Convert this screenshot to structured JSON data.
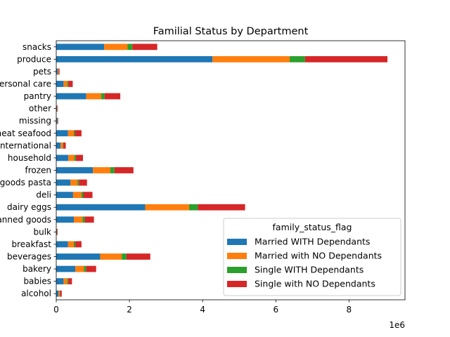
{
  "chart_data": {
    "type": "bar",
    "orientation": "horizontal",
    "stacked": true,
    "title": "Familial Status by Department",
    "xlabel": "",
    "ylabel": "",
    "x_offset_label": "1e6",
    "xlim": [
      0,
      9530000
    ],
    "x_ticks": [
      0,
      2000000,
      4000000,
      6000000,
      8000000
    ],
    "x_tick_labels": [
      "0",
      "2",
      "4",
      "6",
      "8"
    ],
    "legend": {
      "title": "family_status_flag",
      "placement": "lower-right"
    },
    "categories": [
      "alcohol",
      "babies",
      "bakery",
      "beverages",
      "breakfast",
      "bulk",
      "canned goods",
      "dairy eggs",
      "deli",
      "dry goods pasta",
      "frozen",
      "household",
      "international",
      "meat seafood",
      "missing",
      "other",
      "pantry",
      "personal care",
      "pets",
      "produce",
      "snacks"
    ],
    "series": [
      {
        "name": "Married WITH Dependants",
        "color": "#1f77b4",
        "values": [
          60000,
          200000,
          520000,
          1200000,
          320000,
          20000,
          480000,
          2430000,
          460000,
          390000,
          1000000,
          330000,
          120000,
          320000,
          30000,
          20000,
          820000,
          200000,
          40000,
          4270000,
          1310000
        ]
      },
      {
        "name": "Married with NO Dependants",
        "color": "#ff7f0e",
        "values": [
          30000,
          100000,
          240000,
          590000,
          160000,
          10000,
          240000,
          1200000,
          230000,
          190000,
          480000,
          170000,
          60000,
          160000,
          10000,
          10000,
          410000,
          100000,
          20000,
          2110000,
          640000
        ]
      },
      {
        "name": "Single WITH Dependants",
        "color": "#2ca02c",
        "values": [
          10000,
          30000,
          60000,
          130000,
          40000,
          2000,
          60000,
          240000,
          50000,
          40000,
          110000,
          40000,
          10000,
          30000,
          5000,
          3000,
          90000,
          30000,
          5000,
          420000,
          130000
        ]
      },
      {
        "name": "Single with NO Dependants",
        "color": "#d62728",
        "values": [
          50000,
          100000,
          270000,
          650000,
          170000,
          10000,
          250000,
          1290000,
          250000,
          220000,
          520000,
          190000,
          70000,
          180000,
          10000,
          10000,
          430000,
          120000,
          25000,
          2250000,
          680000
        ]
      }
    ]
  }
}
